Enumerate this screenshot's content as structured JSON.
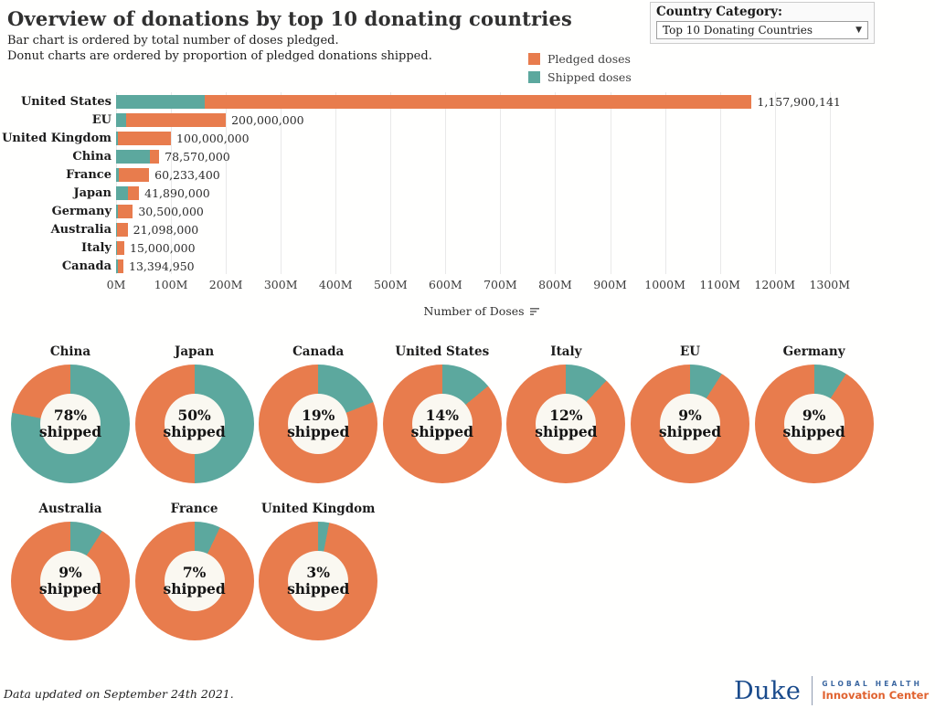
{
  "header": {
    "title": "Overview of donations by top 10 donating countries",
    "subtitle_line1": "Bar chart is ordered by total number of doses pledged.",
    "subtitle_line2": "Donut charts are ordered by proportion of pledged donations shipped.",
    "filter": {
      "label": "Country Category:",
      "selected": "Top 10 Donating Countries"
    }
  },
  "legend": {
    "items": [
      {
        "label": "Pledged doses",
        "color": "#E87C4D"
      },
      {
        "label": "Shipped doses",
        "color": "#5CA89E"
      }
    ]
  },
  "colors": {
    "pledged": "#E87C4D",
    "shipped": "#5CA89E",
    "grid": "#e9e9e9"
  },
  "chart_data": [
    {
      "type": "bar",
      "orientation": "horizontal",
      "title": "Doses pledged and shipped by country",
      "xlabel": "Number of Doses",
      "categories": [
        "United States",
        "EU",
        "United Kingdom",
        "China",
        "France",
        "Japan",
        "Germany",
        "Australia",
        "Italy",
        "Canada"
      ],
      "series": [
        {
          "name": "Pledged doses",
          "values": [
            1157900141,
            200000000,
            100000000,
            78570000,
            60233400,
            41890000,
            30500000,
            21098000,
            15000000,
            13394950
          ]
        },
        {
          "name": "Shipped doses",
          "values": [
            162106020,
            18000000,
            3000000,
            61284600,
            4216338,
            20945000,
            2745000,
            1898820,
            1800000,
            2545041
          ]
        }
      ],
      "value_labels": [
        "1,157,900,141",
        "200,000,000",
        "100,000,000",
        "78,570,000",
        "60,233,400",
        "41,890,000",
        "30,500,000",
        "21,098,000",
        "15,000,000",
        "13,394,950"
      ],
      "xlim": [
        0,
        1332000000
      ],
      "tick_interval": 100000000,
      "ticks": [
        "0M",
        "100M",
        "200M",
        "300M",
        "400M",
        "500M",
        "600M",
        "700M",
        "800M",
        "900M",
        "1000M",
        "1100M",
        "1200M",
        "1300M"
      ],
      "grid": true,
      "legend_position": "top-right"
    },
    {
      "type": "pie",
      "subtype": "donut",
      "title": "Proportion of pledged donations shipped",
      "donuts": [
        {
          "country": "China",
          "shipped_pct": 78,
          "center_line1": "78%",
          "center_line2": "shipped"
        },
        {
          "country": "Japan",
          "shipped_pct": 50,
          "center_line1": "50%",
          "center_line2": "shipped"
        },
        {
          "country": "Canada",
          "shipped_pct": 19,
          "center_line1": "19%",
          "center_line2": "shipped"
        },
        {
          "country": "United States",
          "shipped_pct": 14,
          "center_line1": "14%",
          "center_line2": "shipped"
        },
        {
          "country": "Italy",
          "shipped_pct": 12,
          "center_line1": "12%",
          "center_line2": "shipped"
        },
        {
          "country": "EU",
          "shipped_pct": 9,
          "center_line1": "9%",
          "center_line2": "shipped"
        },
        {
          "country": "Germany",
          "shipped_pct": 9,
          "center_line1": "9%",
          "center_line2": "shipped"
        },
        {
          "country": "Australia",
          "shipped_pct": 9,
          "center_line1": "9%",
          "center_line2": "shipped"
        },
        {
          "country": "France",
          "shipped_pct": 7,
          "center_line1": "7%",
          "center_line2": "shipped"
        },
        {
          "country": "United Kingdom",
          "shipped_pct": 3,
          "center_line1": "3%",
          "center_line2": "shipped"
        }
      ]
    }
  ],
  "footer": {
    "note": "Data updated on September 24th 2021.",
    "logo": {
      "duke": "Duke",
      "line1": "GLOBAL HEALTH",
      "line2": "Innovation Center"
    }
  }
}
